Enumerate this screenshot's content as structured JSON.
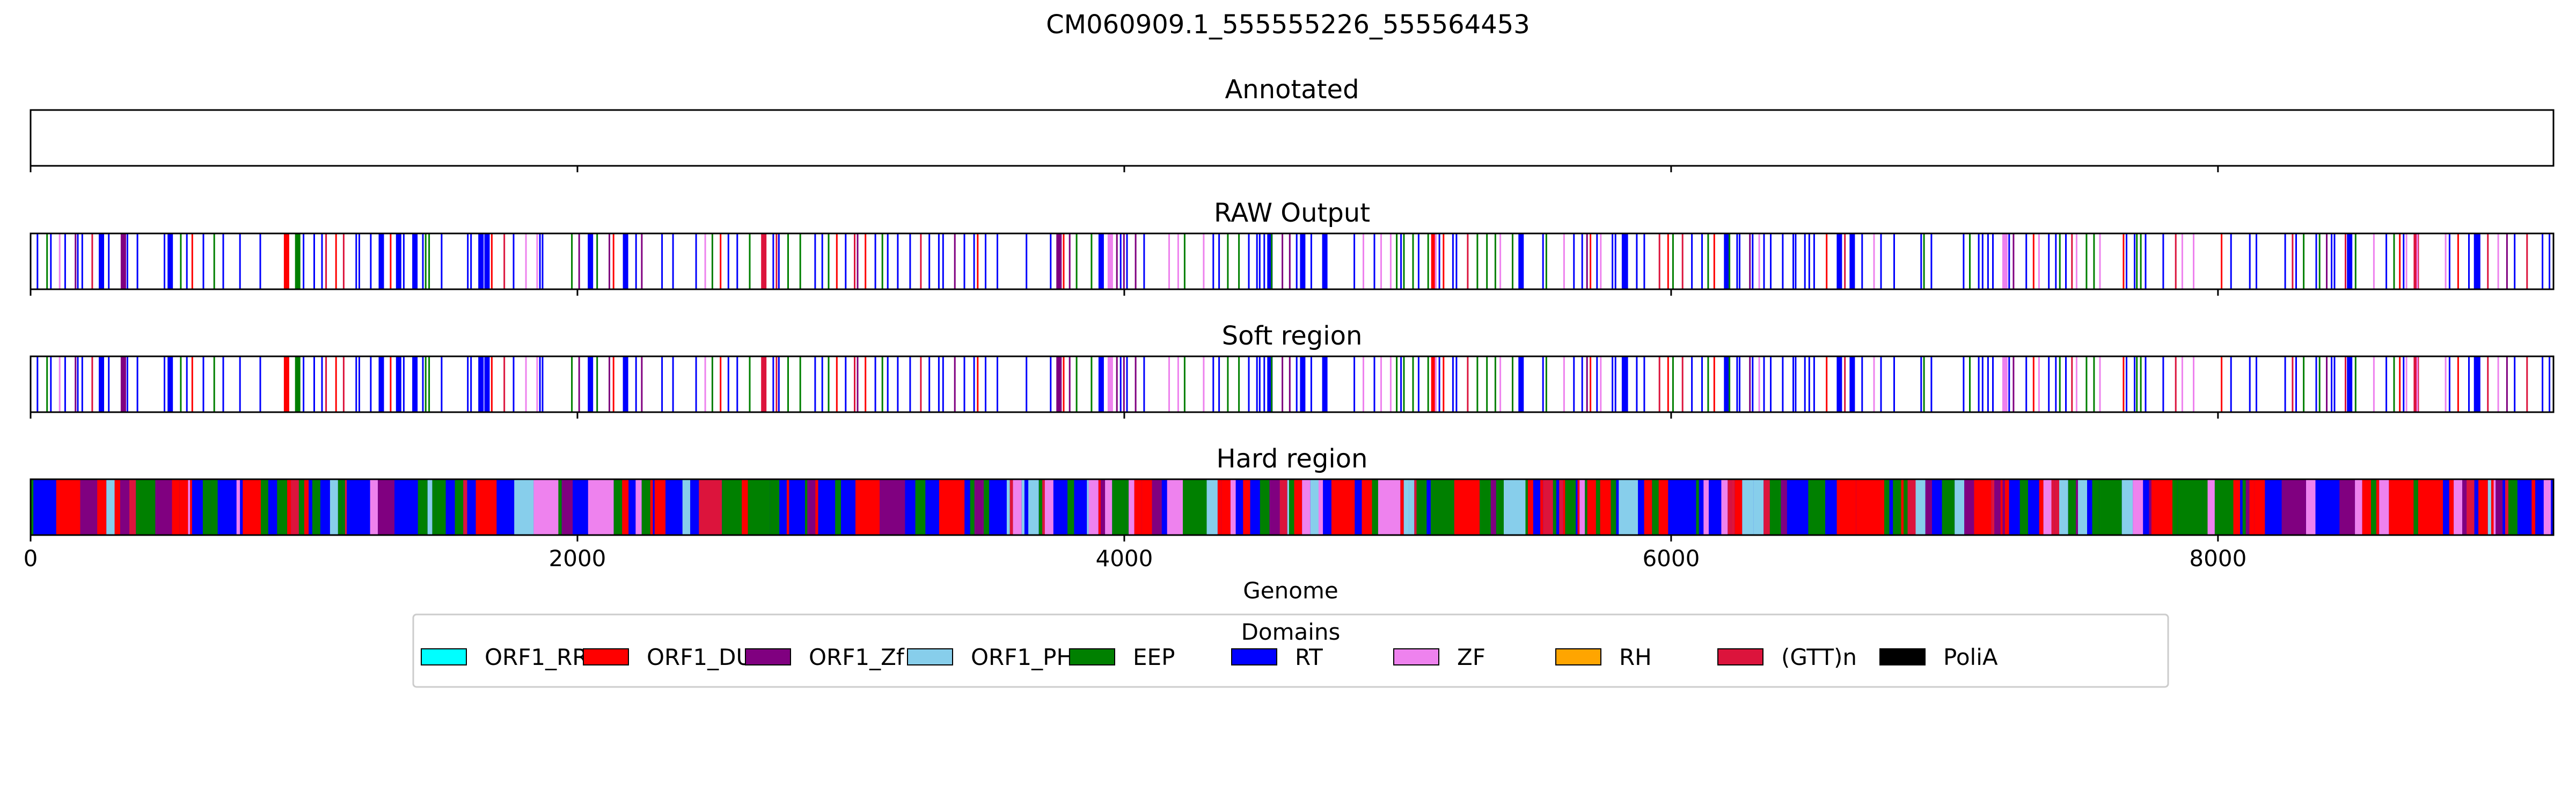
{
  "chart_data": {
    "type": "genome_track",
    "title": "CM060909.1_555555226_555564453",
    "xlabel": "Genome",
    "xlim": [
      0,
      9227
    ],
    "x_ticks": [
      "0",
      "2000",
      "4000",
      "6000",
      "8000"
    ],
    "x_tick_values": [
      0,
      2000,
      4000,
      6000,
      8000
    ],
    "grid": false,
    "legend": {
      "title": "Domains",
      "placement": "bottom-center",
      "entries": [
        {
          "name": "ORF1_RRM",
          "color": "#00ffff"
        },
        {
          "name": "ORF1_DUF",
          "color": "#ff0000"
        },
        {
          "name": "ORF1_Zf",
          "color": "#800080"
        },
        {
          "name": "ORF1_PHA",
          "color": "#87ceeb"
        },
        {
          "name": "EEP",
          "color": "#008000"
        },
        {
          "name": "RT",
          "color": "#0000ff"
        },
        {
          "name": "ZF",
          "color": "#ee82ee"
        },
        {
          "name": "RH",
          "color": "#ffa500"
        },
        {
          "name": "(GTT)n",
          "color": "#dc143c"
        },
        {
          "name": "PoliA",
          "color": "#000000"
        }
      ]
    },
    "panels": [
      {
        "title": "Annotated",
        "mode": "empty",
        "seed": 0
      },
      {
        "title": "RAW Output",
        "mode": "sparse",
        "seed": 17
      },
      {
        "title": "Soft region",
        "mode": "sparse",
        "seed": 17
      },
      {
        "title": "Hard region",
        "mode": "dense",
        "seed": 91
      }
    ]
  }
}
